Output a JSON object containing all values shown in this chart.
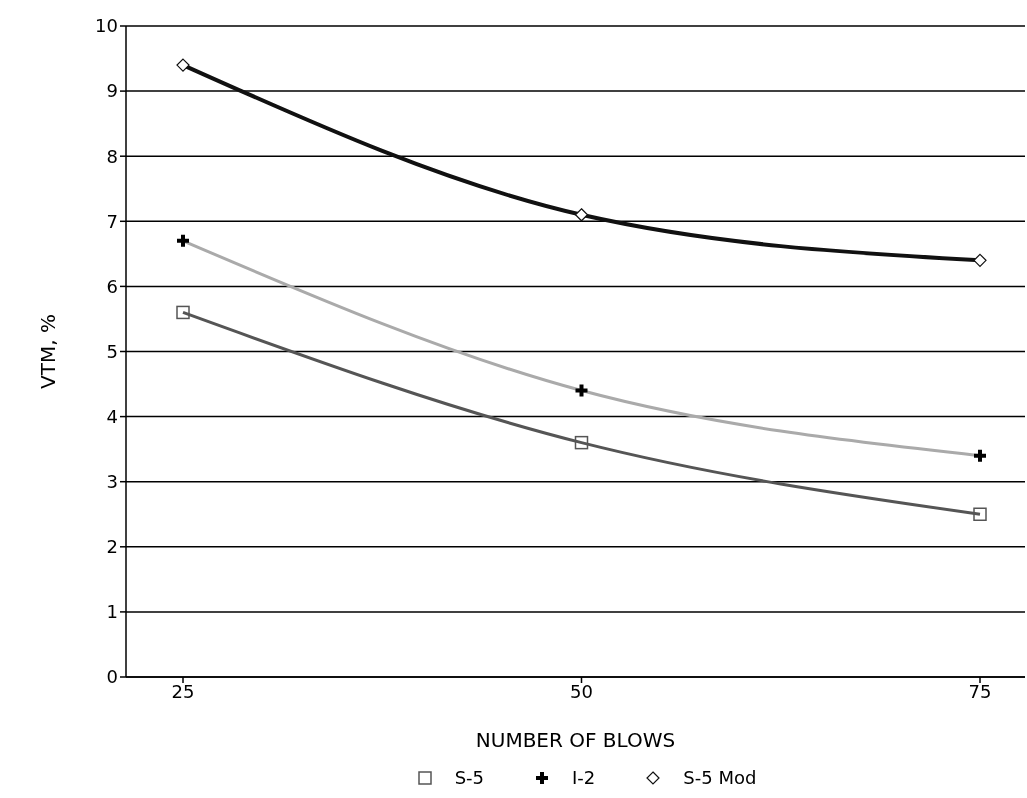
{
  "chart_data": {
    "type": "line",
    "xlabel": "NUMBER OF BLOWS",
    "ylabel": "VTM, %",
    "categories": [
      "25",
      "50",
      "75"
    ],
    "series": [
      {
        "name": "S-5",
        "color": "#555555",
        "marker": "square",
        "values": [
          5.6,
          3.6,
          2.5
        ]
      },
      {
        "name": "I-2",
        "color": "#aaaaaa",
        "marker": "cross",
        "values": [
          6.7,
          4.4,
          3.4
        ]
      },
      {
        "name": "S-5 Mod",
        "color": "#111111",
        "marker": "diamond",
        "values": [
          9.4,
          7.1,
          6.4
        ]
      }
    ],
    "ylim": [
      0,
      10
    ],
    "yticks": [
      0,
      1,
      2,
      3,
      4,
      5,
      6,
      7,
      8,
      9,
      10
    ],
    "grid": "y",
    "legend": "bottom"
  }
}
